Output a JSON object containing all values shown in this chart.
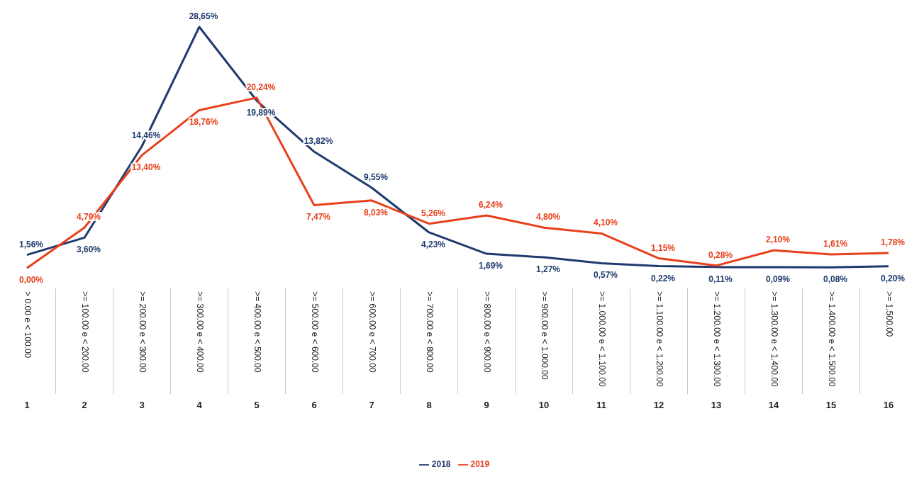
{
  "chart_data": {
    "type": "line",
    "categories": [
      "> 0.00 e < 100.00",
      ">= 100.00 e < 200.00",
      ">= 200.00 e < 300.00",
      ">= 300.00 e < 400.00",
      ">= 400.00 e < 500.00",
      ">= 500.00 e < 600.00",
      ">= 600.00 e < 700.00",
      ">= 700.00 e < 800.00",
      ">= 800.00 e < 900.00",
      ">= 900.00 e < 1.000.00",
      ">= 1.000.00 e < 1.100.00",
      ">= 1.100.00 e < 1.200.00",
      ">= 1.200.00 e < 1.300.00",
      ">= 1.300.00 e < 1.400.00",
      ">= 1.400.00 e < 1.500.00",
      ">= 1.500.00"
    ],
    "series": [
      {
        "name": "2018",
        "color": "#1f3a6e",
        "values": [
          1.56,
          3.6,
          14.46,
          28.65,
          19.89,
          13.82,
          9.55,
          4.23,
          1.69,
          1.27,
          0.57,
          0.22,
          0.11,
          0.09,
          0.08,
          0.2
        ],
        "value_labels": [
          "1,56%",
          "3,60%",
          "14,46%",
          "28,65%",
          "19,89%",
          "13,82%",
          "9,55%",
          "4,23%",
          "1,69%",
          "1,27%",
          "0,57%",
          "0,22%",
          "0,11%",
          "0,09%",
          "0,08%",
          "0,20%"
        ]
      },
      {
        "name": "2019",
        "color": "#e8401c",
        "values": [
          0.0,
          4.79,
          13.4,
          18.76,
          20.24,
          7.47,
          8.03,
          5.26,
          6.24,
          4.8,
          4.1,
          1.15,
          0.28,
          2.1,
          1.61,
          1.78
        ],
        "value_labels": [
          "0,00%",
          "4,79%",
          "13,40%",
          "18,76%",
          "20,24%",
          "7,47%",
          "8,03%",
          "5,26%",
          "6,24%",
          "4,80%",
          "4,10%",
          "1,15%",
          "0,28%",
          "2,10%",
          "1,61%",
          "1,78%"
        ]
      }
    ],
    "annotations": [
      "1",
      "2",
      "3",
      "4",
      "5",
      "6",
      "7",
      "8",
      "9",
      "10",
      "11",
      "12",
      "13",
      "14",
      "15",
      "16"
    ],
    "legend": "bottom",
    "marker": "none",
    "line_style": "solid"
  }
}
